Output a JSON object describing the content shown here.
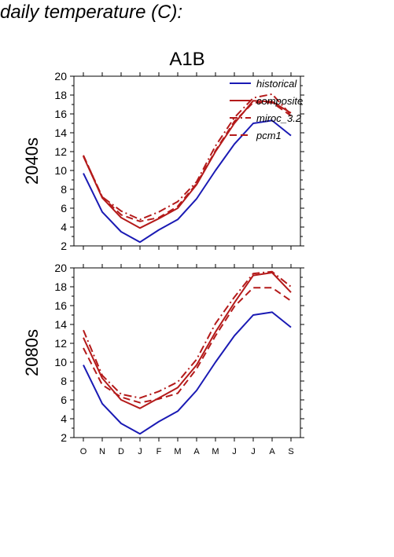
{
  "page_heading": "daily temperature (C):",
  "colors": {
    "historical": "#1a1ab4",
    "projection": "#b41a1a"
  },
  "chart_data": [
    {
      "type": "line",
      "title": "A1B",
      "ylabel": "2040s",
      "categories": [
        "O",
        "N",
        "D",
        "J",
        "F",
        "M",
        "A",
        "M",
        "J",
        "J",
        "A",
        "S"
      ],
      "ylim": [
        2,
        20
      ],
      "yticks": [
        2,
        4,
        6,
        8,
        10,
        12,
        14,
        16,
        18,
        20
      ],
      "legend": "top-right",
      "series": [
        {
          "name": "historical",
          "style": "solid",
          "color": "#1a1ab4",
          "values": [
            9.7,
            5.6,
            3.5,
            2.4,
            3.7,
            4.8,
            7.0,
            10.0,
            12.8,
            15.0,
            15.3,
            13.7
          ]
        },
        {
          "name": "composite",
          "style": "solid",
          "color": "#b41a1a",
          "values": [
            11.5,
            7.1,
            5.0,
            3.9,
            4.9,
            6.0,
            8.5,
            12.0,
            15.0,
            17.4,
            17.3,
            16.1
          ]
        },
        {
          "name": "miroc_3.2",
          "style": "dashdot",
          "color": "#b41a1a",
          "values": [
            11.6,
            7.2,
            5.7,
            4.8,
            5.6,
            6.7,
            8.8,
            12.6,
            15.6,
            17.7,
            18.1,
            15.9
          ]
        },
        {
          "name": "pcm1",
          "style": "dashed",
          "color": "#b41a1a",
          "values": [
            11.6,
            7.2,
            5.3,
            4.6,
            5.0,
            6.2,
            8.6,
            12.1,
            15.2,
            17.2,
            17.2,
            15.8
          ]
        }
      ]
    },
    {
      "type": "line",
      "title": "",
      "ylabel": "2080s",
      "categories": [
        "O",
        "N",
        "D",
        "J",
        "F",
        "M",
        "A",
        "M",
        "J",
        "J",
        "A",
        "S"
      ],
      "ylim": [
        2,
        20
      ],
      "yticks": [
        2,
        4,
        6,
        8,
        10,
        12,
        14,
        16,
        18,
        20
      ],
      "series": [
        {
          "name": "historical",
          "style": "solid",
          "color": "#1a1ab4",
          "values": [
            9.7,
            5.6,
            3.5,
            2.4,
            3.7,
            4.8,
            7.0,
            10.0,
            12.8,
            15.0,
            15.3,
            13.7
          ]
        },
        {
          "name": "composite",
          "style": "solid",
          "color": "#b41a1a",
          "values": [
            12.6,
            8.3,
            6.0,
            5.1,
            6.2,
            7.3,
            9.7,
            13.2,
            16.3,
            19.2,
            19.5,
            17.4
          ]
        },
        {
          "name": "miroc_3.2",
          "style": "dashdot",
          "color": "#b41a1a",
          "values": [
            13.4,
            8.6,
            6.6,
            6.2,
            6.9,
            7.9,
            10.3,
            14.1,
            16.9,
            19.4,
            19.6,
            18.0
          ]
        },
        {
          "name": "pcm1",
          "style": "dashed",
          "color": "#b41a1a",
          "values": [
            11.5,
            7.6,
            6.3,
            5.7,
            6.1,
            6.7,
            9.3,
            12.8,
            15.9,
            17.9,
            17.9,
            16.5
          ]
        }
      ]
    }
  ]
}
